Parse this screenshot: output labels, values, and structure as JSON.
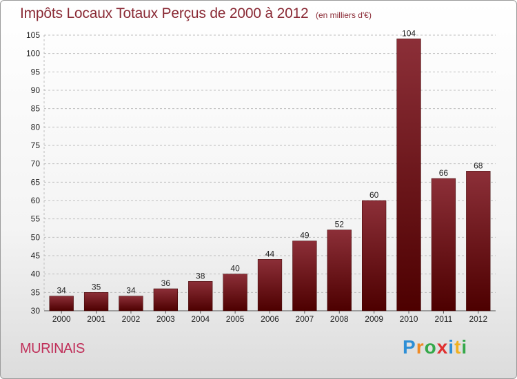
{
  "title": "Impôts Locaux Totaux Perçus de 2000 à 2012",
  "unit_label": "(en milliers d'€)",
  "commune": "MURINAIS",
  "logo": {
    "text": "Proxiti",
    "letters": [
      "P",
      "r",
      "o",
      "x",
      "i",
      "t",
      "i"
    ],
    "colors": [
      "#2e8fd6",
      "#f08a24",
      "#35a84a",
      "#e03030",
      "#2e8fd6",
      "#f0b020",
      "#35a84a"
    ]
  },
  "colors": {
    "bar_top": "#8c2f38",
    "bar_bottom": "#4d0000",
    "title": "#8a2a35",
    "commune": "#c0305a"
  },
  "chart_data": {
    "type": "bar",
    "title": "Impôts Locaux Totaux Perçus de 2000 à 2012",
    "subtitle": "(en milliers d'€)",
    "categories": [
      "2000",
      "2001",
      "2002",
      "2003",
      "2004",
      "2005",
      "2006",
      "2007",
      "2008",
      "2009",
      "2010",
      "2011",
      "2012"
    ],
    "values": [
      34,
      35,
      34,
      36,
      38,
      40,
      44,
      49,
      52,
      60,
      104,
      66,
      68
    ],
    "ylim": [
      30,
      105
    ],
    "yticks": [
      30,
      35,
      40,
      45,
      50,
      55,
      60,
      65,
      70,
      75,
      80,
      85,
      90,
      95,
      100,
      105
    ],
    "xlabel": "",
    "ylabel": "",
    "grid": true
  }
}
